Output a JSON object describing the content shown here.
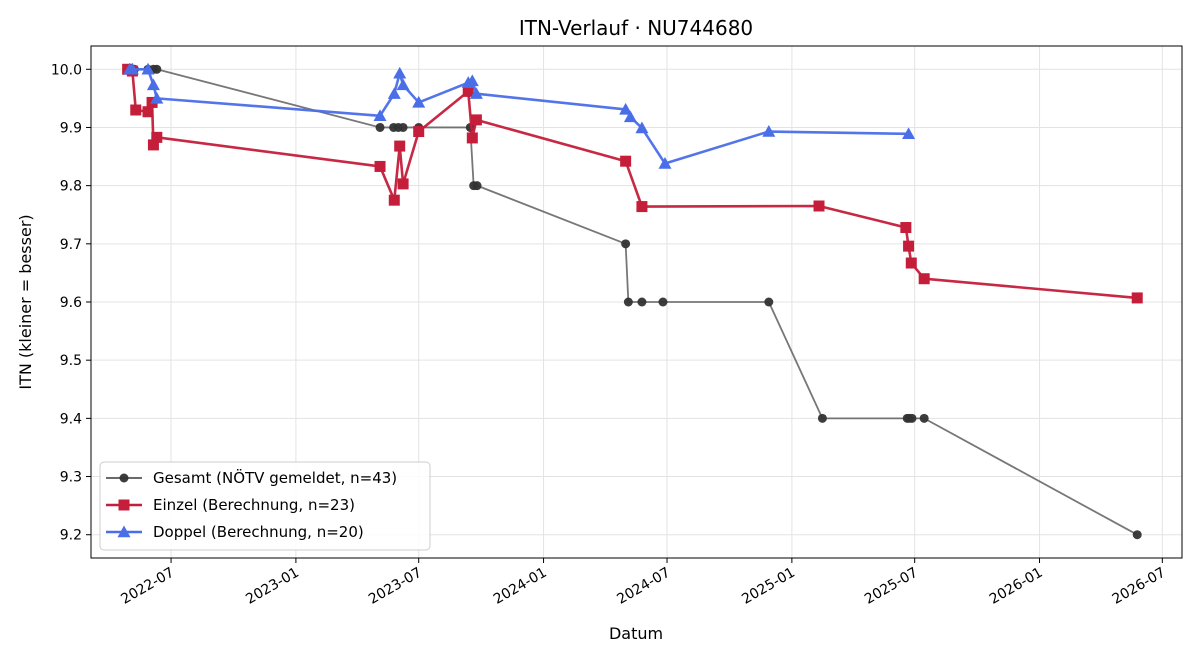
{
  "chart_data": {
    "type": "line",
    "title": "ITN-Verlauf · NU744680",
    "xlabel": "Datum",
    "ylabel": "ITN  (kleiner = besser)",
    "x_ticks": [
      "2022-07",
      "2023-01",
      "2023-07",
      "2024-01",
      "2024-07",
      "2025-01",
      "2025-07",
      "2026-01",
      "2026-07"
    ],
    "y_ticks": [
      "9.2",
      "9.3",
      "9.4",
      "9.5",
      "9.6",
      "9.7",
      "9.8",
      "9.9",
      "10.0"
    ],
    "xlim": [
      "2022-03-05",
      "2026-07-30"
    ],
    "ylim": [
      9.16,
      10.04
    ],
    "grid": true,
    "legend_position": "lower-left",
    "series": [
      {
        "name": "Gesamt (NÖTV gemeldet, n=43)",
        "color": "#555555",
        "marker": "circle",
        "points": [
          [
            "2022-05-01",
            10.0
          ],
          [
            "2022-05-05",
            10.0
          ],
          [
            "2022-05-08",
            10.0
          ],
          [
            "2022-05-28",
            10.0
          ],
          [
            "2022-06-05",
            10.0
          ],
          [
            "2022-06-10",
            10.0
          ],
          [
            "2023-05-05",
            9.9
          ],
          [
            "2023-05-25",
            9.9
          ],
          [
            "2023-06-01",
            9.9
          ],
          [
            "2023-06-08",
            9.9
          ],
          [
            "2023-07-01",
            9.9
          ],
          [
            "2023-09-15",
            9.9
          ],
          [
            "2023-09-20",
            9.8
          ],
          [
            "2023-09-25",
            9.8
          ],
          [
            "2024-05-01",
            9.7
          ],
          [
            "2024-05-05",
            9.6
          ],
          [
            "2024-05-25",
            9.6
          ],
          [
            "2024-06-25",
            9.6
          ],
          [
            "2024-11-28",
            9.6
          ],
          [
            "2025-02-15",
            9.4
          ],
          [
            "2025-06-20",
            9.4
          ],
          [
            "2025-06-23",
            9.4
          ],
          [
            "2025-06-27",
            9.4
          ],
          [
            "2025-07-15",
            9.4
          ],
          [
            "2026-05-25",
            9.2
          ]
        ]
      },
      {
        "name": "Einzel (Berechnung, n=23)",
        "color": "#c41e3a",
        "marker": "square",
        "points": [
          [
            "2022-04-28",
            10.0
          ],
          [
            "2022-05-05",
            9.997
          ],
          [
            "2022-05-10",
            9.93
          ],
          [
            "2022-05-28",
            9.927
          ],
          [
            "2022-06-03",
            9.943
          ],
          [
            "2022-06-05",
            9.87
          ],
          [
            "2022-06-10",
            9.883
          ],
          [
            "2023-05-05",
            9.833
          ],
          [
            "2023-05-26",
            9.775
          ],
          [
            "2023-06-03",
            9.868
          ],
          [
            "2023-06-08",
            9.803
          ],
          [
            "2023-07-01",
            9.893
          ],
          [
            "2023-09-12",
            9.962
          ],
          [
            "2023-09-18",
            9.882
          ],
          [
            "2023-09-24",
            9.913
          ],
          [
            "2024-05-01",
            9.842
          ],
          [
            "2024-05-25",
            9.764
          ],
          [
            "2025-02-10",
            9.765
          ],
          [
            "2025-06-18",
            9.728
          ],
          [
            "2025-06-22",
            9.696
          ],
          [
            "2025-06-26",
            9.667
          ],
          [
            "2025-07-15",
            9.64
          ],
          [
            "2026-05-25",
            9.607
          ]
        ]
      },
      {
        "name": "Doppel (Berechnung, n=20)",
        "color": "#4a6ee8",
        "marker": "triangle",
        "points": [
          [
            "2022-05-01",
            10.0
          ],
          [
            "2022-05-05",
            10.0
          ],
          [
            "2022-05-28",
            10.0
          ],
          [
            "2022-06-05",
            9.973
          ],
          [
            "2022-06-10",
            9.95
          ],
          [
            "2023-05-05",
            9.92
          ],
          [
            "2023-05-26",
            9.958
          ],
          [
            "2023-06-03",
            9.993
          ],
          [
            "2023-06-08",
            9.973
          ],
          [
            "2023-07-01",
            9.943
          ],
          [
            "2023-09-12",
            9.977
          ],
          [
            "2023-09-18",
            9.98
          ],
          [
            "2023-09-24",
            9.958
          ],
          [
            "2024-05-01",
            9.931
          ],
          [
            "2024-05-08",
            9.918
          ],
          [
            "2024-05-25",
            9.899
          ],
          [
            "2024-06-28",
            9.838
          ],
          [
            "2024-11-28",
            9.893
          ],
          [
            "2025-06-22",
            9.889
          ]
        ]
      }
    ]
  }
}
